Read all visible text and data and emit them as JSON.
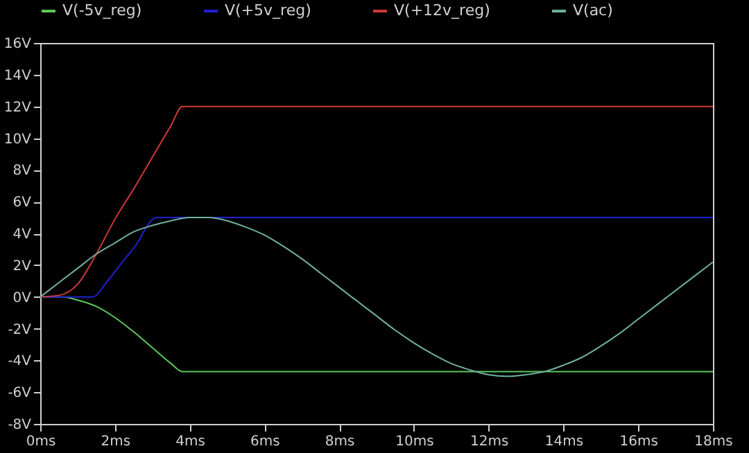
{
  "chart_data": {
    "type": "line",
    "series": [
      {
        "name": "V(-5v_reg)",
        "color": "#5cc85c",
        "x": [
          0,
          0.6,
          1,
          1.5,
          2,
          2.5,
          3,
          3.5,
          3.8,
          18
        ],
        "values": [
          0,
          0,
          -0.2,
          -0.6,
          -1.3,
          -2.2,
          -3.2,
          -4.2,
          -4.7,
          -4.7
        ]
      },
      {
        "name": "V(+5v_reg)",
        "color": "#2020d0",
        "x": [
          0,
          1.4,
          1.8,
          2.2,
          2.6,
          2.9,
          3.1,
          18
        ],
        "values": [
          0,
          0,
          1,
          2.2,
          3.4,
          4.6,
          5,
          5
        ]
      },
      {
        "name": "V(+12v_reg)",
        "color": "#d03838",
        "x": [
          0,
          0.5,
          1,
          1.5,
          2,
          2.5,
          3,
          3.5,
          3.8,
          18
        ],
        "values": [
          0,
          0.1,
          0.8,
          2.7,
          4.9,
          6.8,
          8.8,
          10.8,
          12,
          12
        ]
      },
      {
        "name": "V(ac)",
        "color": "#70b0a0",
        "x": [
          0,
          0.5,
          1,
          1.5,
          2,
          2.5,
          3,
          3.5,
          4,
          4.5,
          5,
          5.5,
          6,
          6.5,
          7,
          7.5,
          8,
          8.5,
          9,
          9.5,
          10,
          10.5,
          11,
          11.5,
          12,
          12.5,
          13,
          13.5,
          14,
          14.5,
          15,
          15.5,
          16,
          16.5,
          17,
          17.5,
          18
        ],
        "values": [
          0,
          0.9,
          1.8,
          2.7,
          3.4,
          4.1,
          4.5,
          4.8,
          5,
          5,
          4.8,
          4.4,
          3.9,
          3.2,
          2.4,
          1.5,
          0.6,
          -0.3,
          -1.2,
          -2.1,
          -2.9,
          -3.6,
          -4.2,
          -4.6,
          -4.9,
          -5,
          -4.9,
          -4.7,
          -4.3,
          -3.8,
          -3.1,
          -2.3,
          -1.4,
          -0.5,
          0.4,
          1.3,
          2.2
        ]
      }
    ],
    "xlim": [
      0,
      18
    ],
    "xticks": [
      {
        "value": 0,
        "label": "0ms"
      },
      {
        "value": 2,
        "label": "2ms"
      },
      {
        "value": 4,
        "label": "4ms"
      },
      {
        "value": 6,
        "label": "6ms"
      },
      {
        "value": 8,
        "label": "8ms"
      },
      {
        "value": 10,
        "label": "10ms"
      },
      {
        "value": 12,
        "label": "12ms"
      },
      {
        "value": 14,
        "label": "14ms"
      },
      {
        "value": 16,
        "label": "16ms"
      },
      {
        "value": 18,
        "label": "18ms"
      }
    ],
    "ylim": [
      -8,
      16
    ],
    "yticks": [
      {
        "value": -8,
        "label": "-8V"
      },
      {
        "value": -6,
        "label": "-6V"
      },
      {
        "value": -4,
        "label": "-4V"
      },
      {
        "value": -2,
        "label": "-2V"
      },
      {
        "value": 0,
        "label": "0V"
      },
      {
        "value": 2,
        "label": "2V"
      },
      {
        "value": 4,
        "label": "4V"
      },
      {
        "value": 6,
        "label": "6V"
      },
      {
        "value": 8,
        "label": "8V"
      },
      {
        "value": 10,
        "label": "10V"
      },
      {
        "value": 12,
        "label": "12V"
      },
      {
        "value": 14,
        "label": "14V"
      },
      {
        "value": 16,
        "label": "16V"
      }
    ],
    "grid": false,
    "legend": "top",
    "line_style": "solid"
  }
}
